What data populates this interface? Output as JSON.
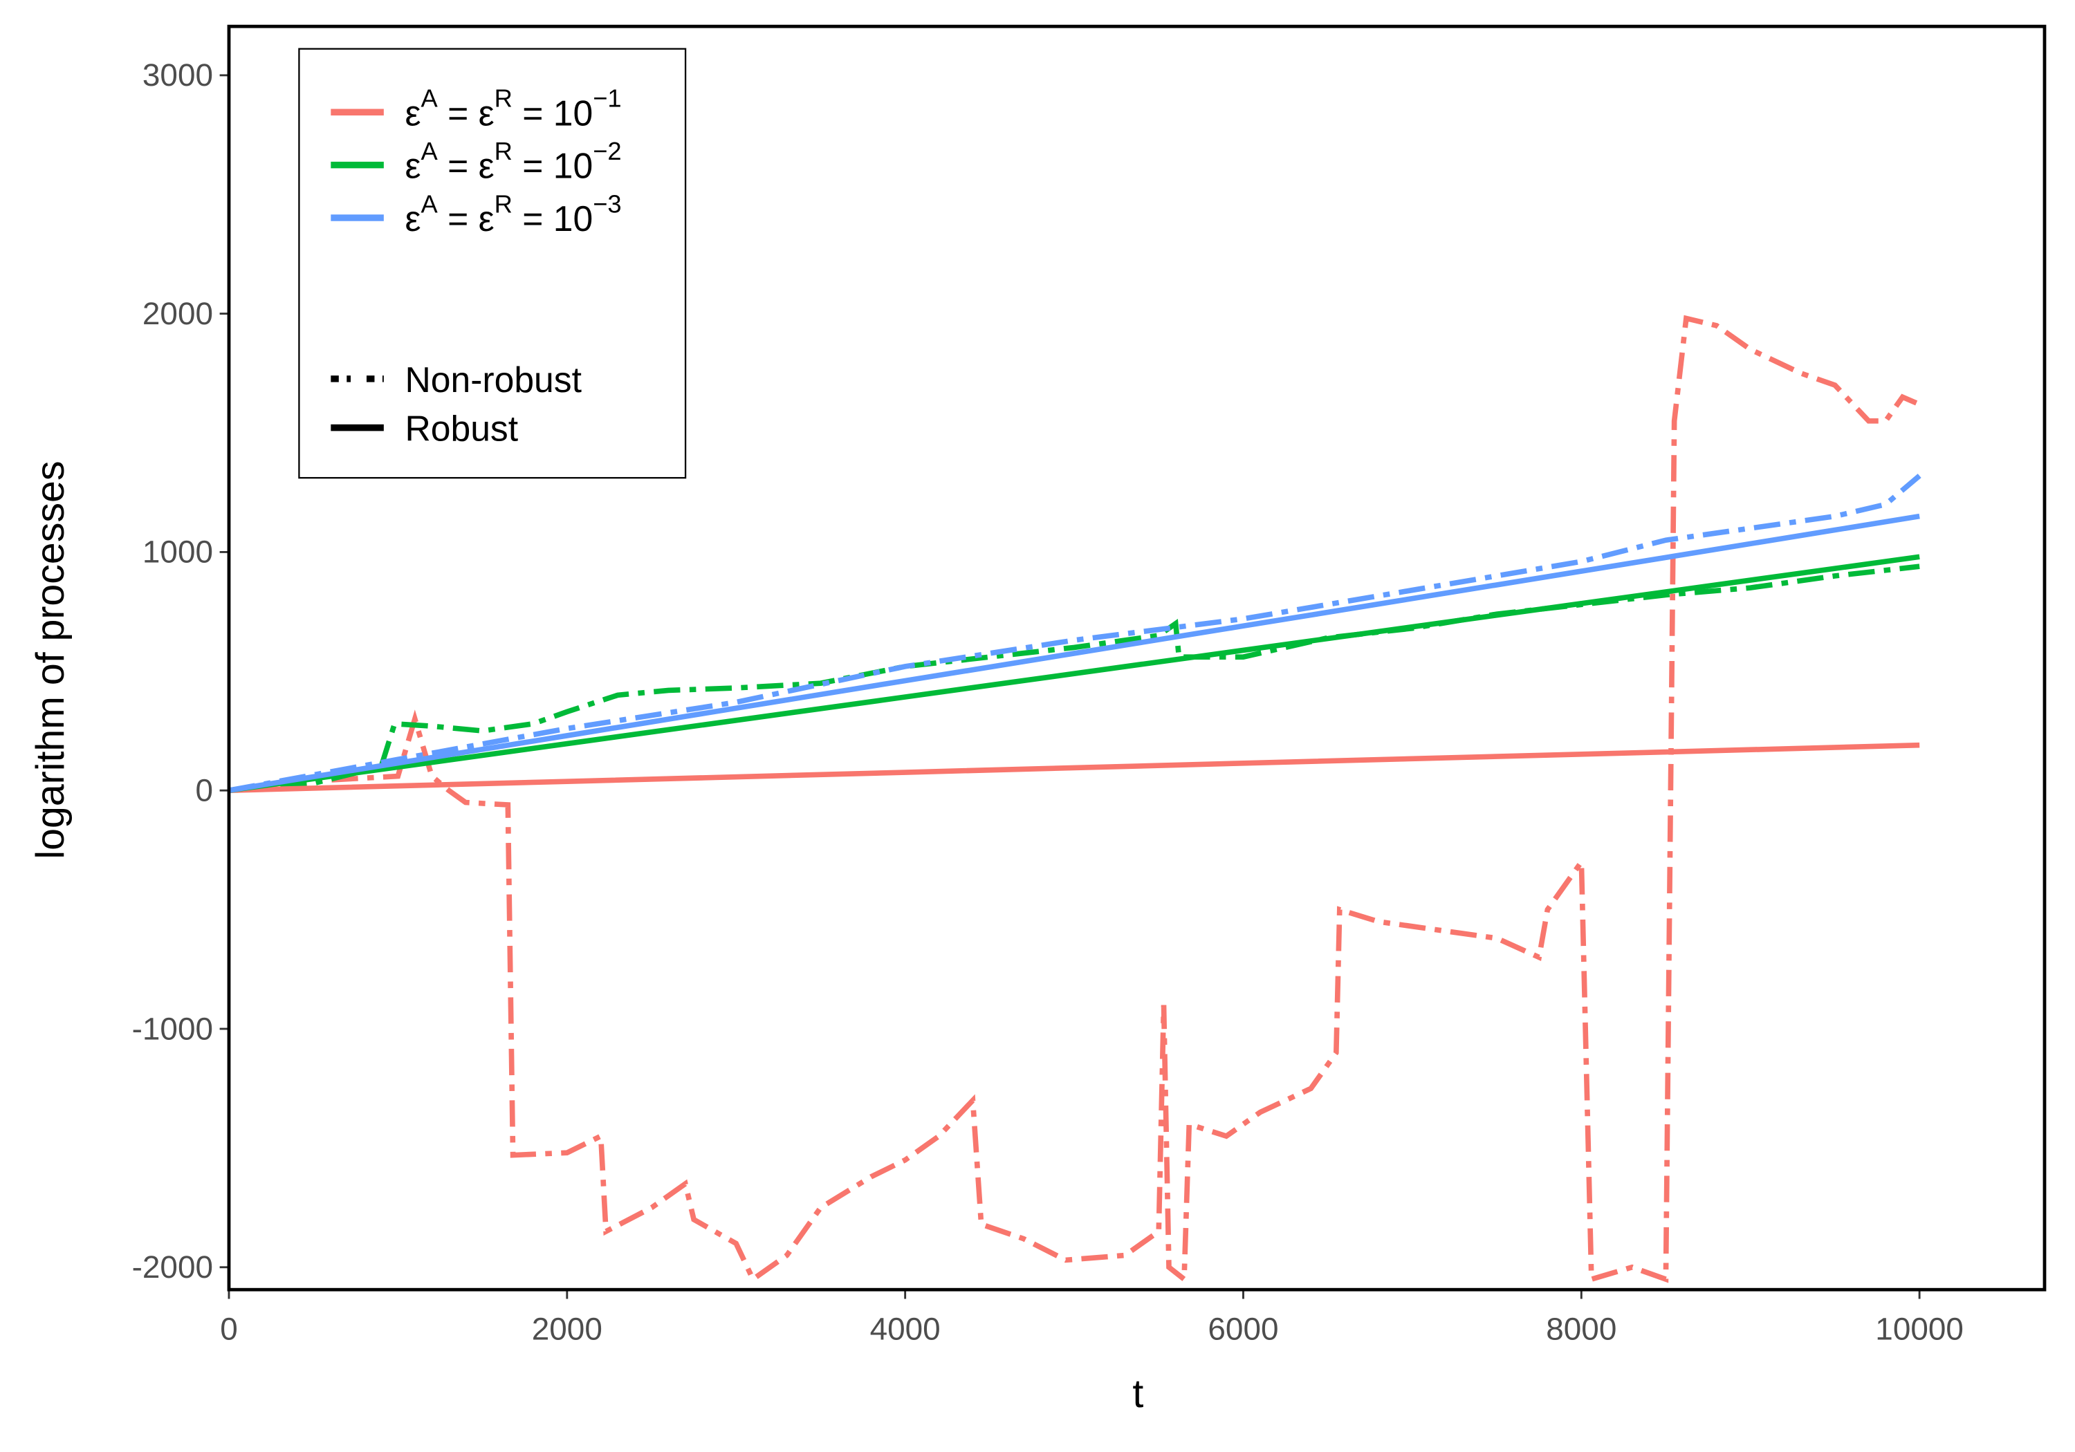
{
  "chart_data": {
    "type": "line",
    "xlabel": "t",
    "ylabel": "logarithm of processes",
    "xlim": [
      0,
      10740
    ],
    "ylim": [
      -2094,
      3205
    ],
    "xticks": [
      0,
      2000,
      4000,
      6000,
      8000,
      10000
    ],
    "yticks": [
      -2000,
      -1000,
      0,
      1000,
      2000,
      3000
    ],
    "grid": false,
    "legend_position": "top-left",
    "color_legend": [
      {
        "parts": [
          [
            "ε",
            "A"
          ],
          [
            " = ε",
            "R"
          ],
          [
            " = 10",
            "−1"
          ]
        ],
        "color": "#F8766D"
      },
      {
        "parts": [
          [
            "ε",
            "A"
          ],
          [
            " = ε",
            "R"
          ],
          [
            " = 10",
            "−2"
          ]
        ],
        "color": "#00BA38"
      },
      {
        "parts": [
          [
            "ε",
            "A"
          ],
          [
            " = ε",
            "R"
          ],
          [
            " = 10",
            "−3"
          ]
        ],
        "color": "#619CFF"
      }
    ],
    "linetype_legend": [
      {
        "label": "Non-robust",
        "linetype": "dotdash"
      },
      {
        "label": "Robust",
        "linetype": "solid"
      }
    ],
    "series": [
      {
        "color": "#F8766D",
        "linetype": "solid",
        "x": [
          0,
          2000,
          4000,
          6000,
          8000,
          10000
        ],
        "values": [
          0,
          38,
          76,
          114,
          152,
          190
        ]
      },
      {
        "color": "#00BA38",
        "linetype": "solid",
        "x": [
          0,
          2000,
          4000,
          6000,
          8000,
          10000
        ],
        "values": [
          0,
          196,
          392,
          588,
          784,
          980
        ]
      },
      {
        "color": "#619CFF",
        "linetype": "solid",
        "x": [
          0,
          2000,
          4000,
          6000,
          8000,
          10000
        ],
        "values": [
          0,
          230,
          460,
          690,
          920,
          1150
        ]
      },
      {
        "color": "#F8766D",
        "linetype": "dotdash",
        "x": [
          0,
          500,
          1000,
          1100,
          1200,
          1300,
          1400,
          1650,
          1680,
          2000,
          2200,
          2230,
          2500,
          2700,
          2750,
          3000,
          3100,
          3300,
          3500,
          3800,
          4000,
          4200,
          4400,
          4450,
          4700,
          4950,
          5300,
          5500,
          5530,
          5560,
          5650,
          5680,
          5900,
          6100,
          6400,
          6550,
          6570,
          6800,
          7100,
          7500,
          7750,
          7800,
          8000,
          8060,
          8300,
          8500,
          8550,
          8620,
          8800,
          9000,
          9300,
          9500,
          9700,
          9800,
          9900,
          10000
        ],
        "values": [
          0,
          40,
          60,
          300,
          60,
          0,
          -50,
          -60,
          -1530,
          -1520,
          -1450,
          -1850,
          -1750,
          -1650,
          -1800,
          -1900,
          -2050,
          -1950,
          -1750,
          -1620,
          -1550,
          -1450,
          -1300,
          -1820,
          -1880,
          -1970,
          -1950,
          -1850,
          -900,
          -2000,
          -2050,
          -1400,
          -1450,
          -1350,
          -1250,
          -1100,
          -500,
          -550,
          -580,
          -620,
          -700,
          -500,
          -300,
          -2050,
          -2000,
          -2050,
          1550,
          1980,
          1950,
          1850,
          1750,
          1700,
          1550,
          1550,
          1650,
          1620
        ]
      },
      {
        "color": "#00BA38",
        "linetype": "dotdash",
        "x": [
          0,
          500,
          900,
          980,
          1200,
          1500,
          1800,
          2000,
          2300,
          2600,
          3000,
          3500,
          4000,
          4500,
          5000,
          5500,
          5600,
          5620,
          6000,
          6500,
          7000,
          7500,
          8000,
          8500,
          9000,
          9500,
          10000
        ],
        "values": [
          0,
          30,
          100,
          280,
          270,
          250,
          280,
          330,
          400,
          420,
          430,
          450,
          520,
          560,
          600,
          650,
          700,
          560,
          560,
          640,
          680,
          740,
          780,
          820,
          850,
          900,
          940
        ]
      },
      {
        "color": "#619CFF",
        "linetype": "dotdash",
        "x": [
          0,
          1000,
          2000,
          3000,
          4000,
          5000,
          6000,
          7000,
          8000,
          8500,
          9000,
          9500,
          9800,
          10000
        ],
        "values": [
          0,
          130,
          260,
          370,
          520,
          630,
          720,
          840,
          960,
          1050,
          1100,
          1150,
          1200,
          1320
        ]
      }
    ]
  }
}
